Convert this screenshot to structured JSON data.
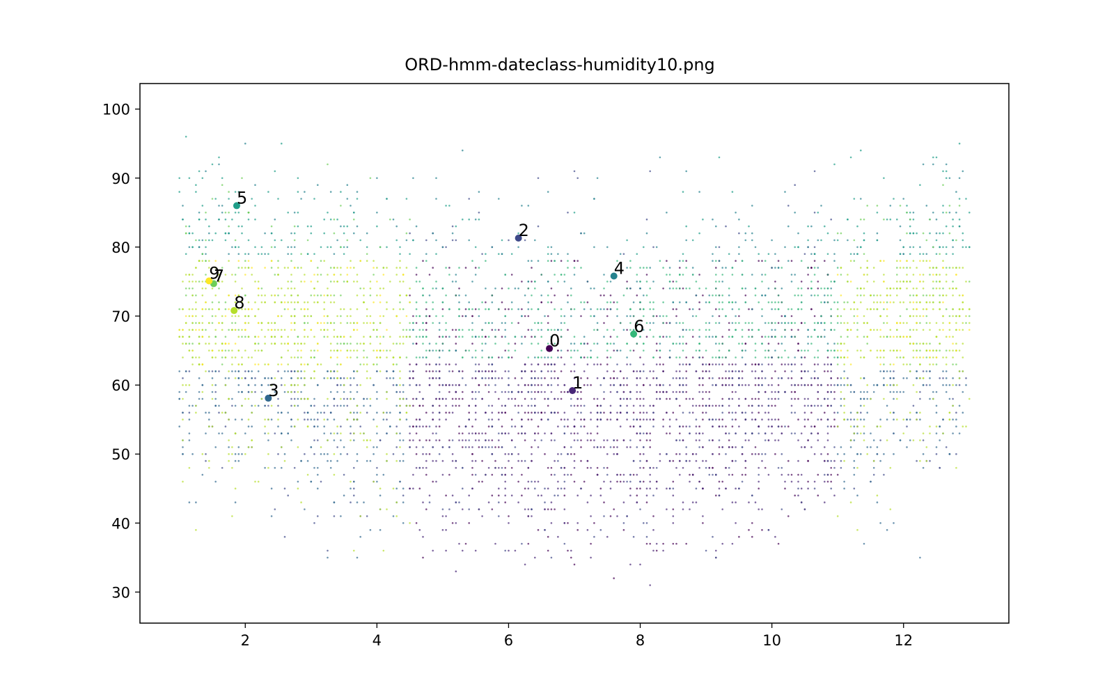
{
  "chart_data": {
    "type": "scatter",
    "title": "ORD-hmm-dateclass-humidity10.png",
    "xlabel": "",
    "ylabel": "",
    "xlim": [
      0.4,
      13.6
    ],
    "ylim": [
      25.5,
      103.7
    ],
    "xticks": [
      "2",
      "4",
      "6",
      "8",
      "10",
      "12"
    ],
    "yticks": [
      "30",
      "40",
      "50",
      "60",
      "70",
      "80",
      "90",
      "100"
    ],
    "grid": false,
    "legend": "none",
    "colormap": "viridis",
    "class_colors": [
      "#440154",
      "#482878",
      "#3e4989",
      "#31688e",
      "#26828e",
      "#1f9e89",
      "#35b779",
      "#6ece58",
      "#b5de2b",
      "#fde725"
    ],
    "background_points_note": "dense cloud of small dots at monthly x positions 1-13, humidity 29-100, colored by class",
    "centroids": [
      {
        "label": "0",
        "class": 0,
        "x": 6.62,
        "y": 65.3
      },
      {
        "label": "1",
        "class": 1,
        "x": 6.97,
        "y": 59.2
      },
      {
        "label": "2",
        "class": 2,
        "x": 6.15,
        "y": 81.3
      },
      {
        "label": "3",
        "class": 3,
        "x": 2.35,
        "y": 58.1
      },
      {
        "label": "4",
        "class": 4,
        "x": 7.6,
        "y": 75.8
      },
      {
        "label": "5",
        "class": 5,
        "x": 1.87,
        "y": 86.0
      },
      {
        "label": "6",
        "class": 6,
        "x": 7.9,
        "y": 67.4
      },
      {
        "label": "7",
        "class": 7,
        "x": 1.52,
        "y": 74.7
      },
      {
        "label": "8",
        "class": 8,
        "x": 1.83,
        "y": 70.8
      },
      {
        "label": "9",
        "class": 9,
        "x": 1.45,
        "y": 75.1
      }
    ]
  }
}
